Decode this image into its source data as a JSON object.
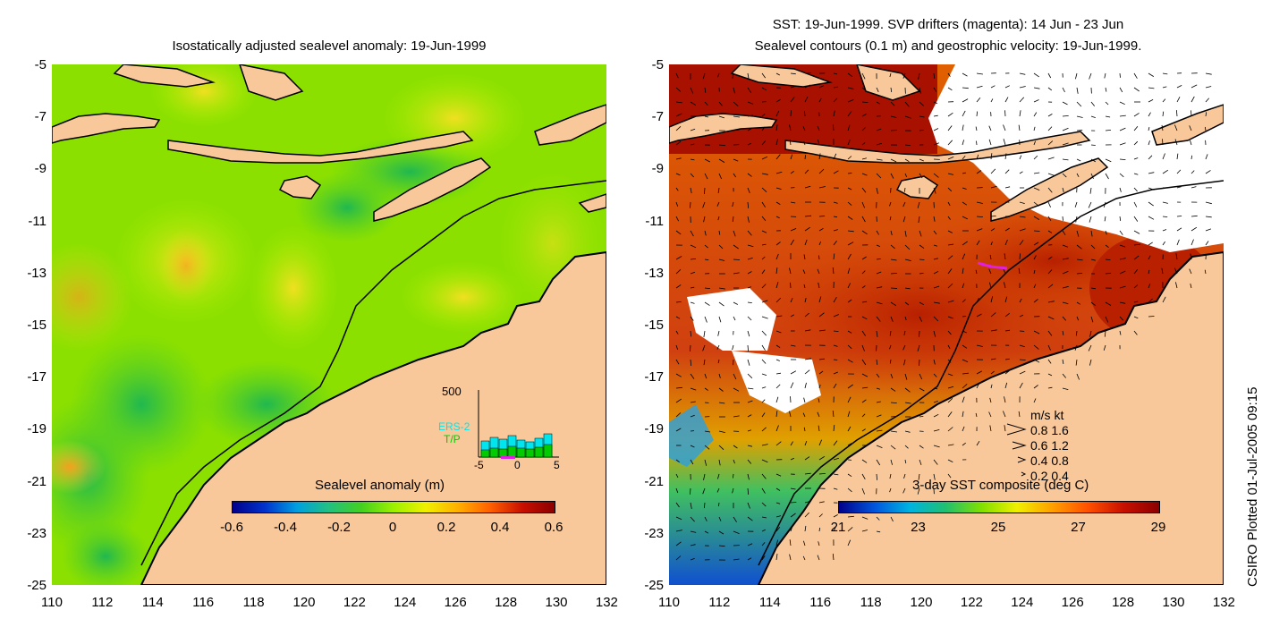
{
  "left_panel": {
    "title": "Isostatically adjusted sealevel anomaly: 19-Jun-1999",
    "colorbar": {
      "label": "Sealevel anomaly (m)",
      "ticks": [
        "-0.6",
        "-0.4",
        "-0.2",
        "0",
        "0.2",
        "0.4",
        "0.6"
      ],
      "colors": [
        "#00008b",
        "#0033cc",
        "#00a0e0",
        "#22c080",
        "#44d020",
        "#9cf000",
        "#f0f000",
        "#ffb000",
        "#ff6000",
        "#c81000",
        "#8b0000"
      ]
    },
    "inset": {
      "y_max_label": "500",
      "series_labels": [
        "ERS-2",
        "T/P"
      ],
      "x_ticks": [
        "-5",
        "0",
        "5"
      ],
      "ers2_color": "#00e5ee",
      "tp_color": "#00cc00"
    }
  },
  "right_panel": {
    "title_line1": "SST: 19-Jun-1999. SVP drifters (magenta): 14 Jun - 23 Jun",
    "title_line2": "Sealevel contours (0.1 m) and geostrophic velocity: 19-Jun-1999.",
    "colorbar": {
      "label": "3-day SST composite (deg C)",
      "ticks": [
        "21",
        "23",
        "25",
        "27",
        "29"
      ],
      "colors": [
        "#00008b",
        "#0055dd",
        "#00b4e0",
        "#20c070",
        "#80e000",
        "#f0f000",
        "#ffa000",
        "#ff5000",
        "#c81000",
        "#8b0000"
      ]
    },
    "velocity_legend": {
      "header": "m/s  kt",
      "rows": [
        "0.8  1.6",
        "0.6  1.2",
        "0.4  0.8",
        "0.2  0.4"
      ]
    }
  },
  "axes": {
    "lon_ticks": [
      "110",
      "112",
      "114",
      "116",
      "118",
      "120",
      "122",
      "124",
      "126",
      "128",
      "130",
      "132"
    ],
    "lat_ticks": [
      "-5",
      "-7",
      "-9",
      "-11",
      "-13",
      "-15",
      "-17",
      "-19",
      "-21",
      "-23",
      "-25"
    ]
  },
  "side_label": "CSIRO Plotted 01-Jul-2005 09:15",
  "colors": {
    "land": "#f9c89a",
    "sea_background": "#7ee000",
    "sst_warm": "#c83000",
    "cloud": "#ffffff"
  }
}
